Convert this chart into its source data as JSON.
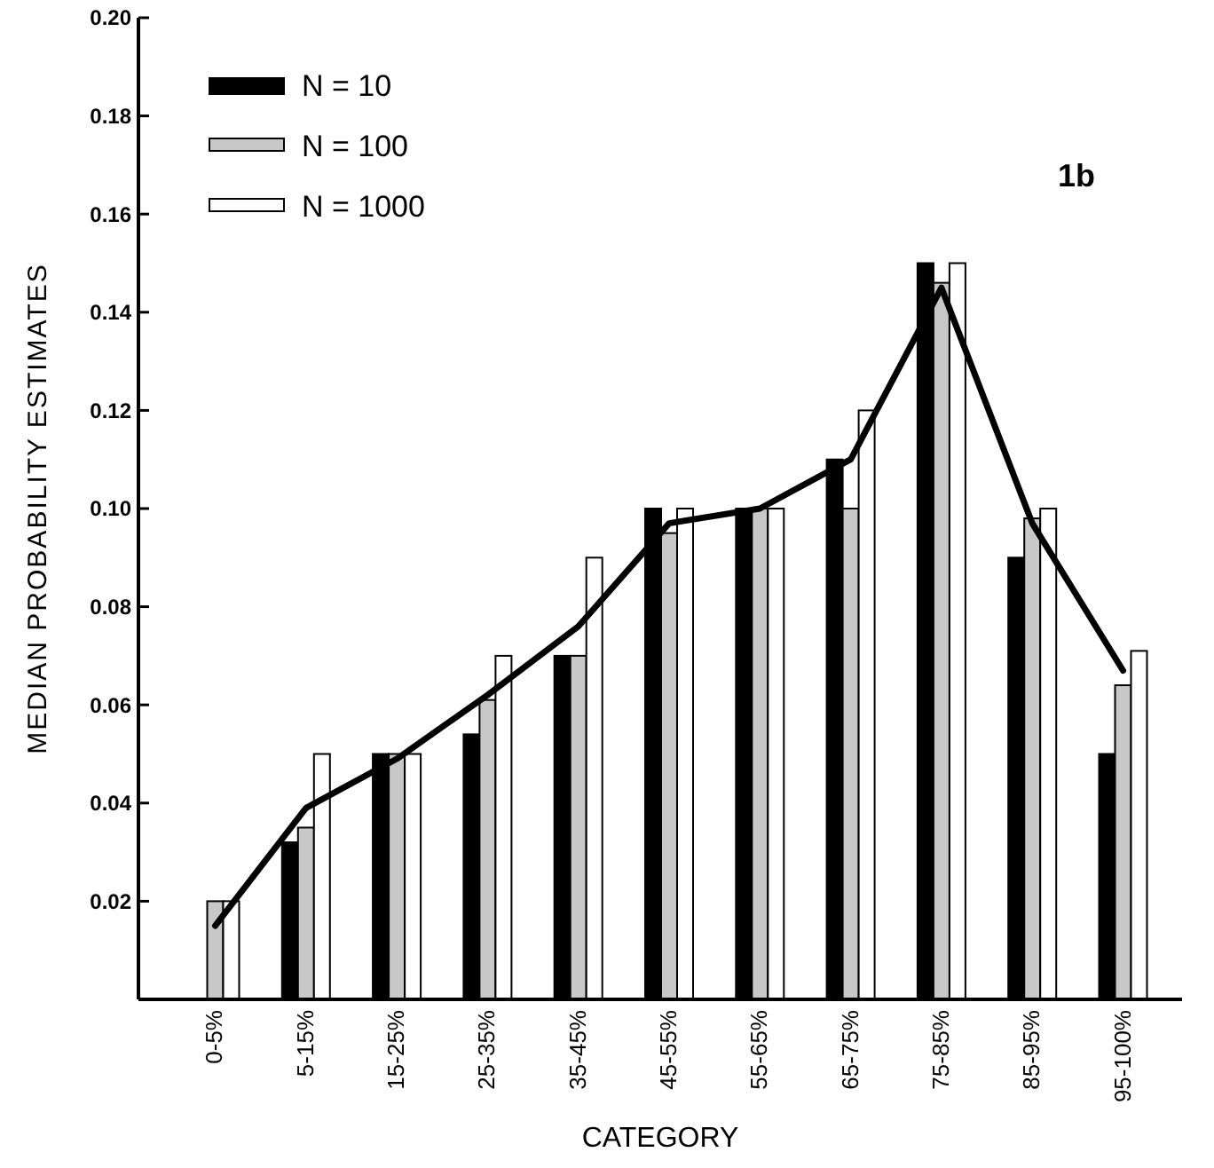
{
  "chart_data": {
    "type": "bar",
    "xlabel": "CATEGORY",
    "ylabel": "MEDIAN PROBABILITY ESTIMATES",
    "annotations": [
      "1b"
    ],
    "categories": [
      "0-5%",
      "5-15%",
      "15-25%",
      "25-35%",
      "35-45%",
      "45-55%",
      "55-65%",
      "65-75%",
      "75-85%",
      "85-95%",
      "95-100%"
    ],
    "series": [
      {
        "name": "N = 10",
        "color": "#000000",
        "values": [
          null,
          0.032,
          0.05,
          0.054,
          0.07,
          0.1,
          0.1,
          0.11,
          0.15,
          0.09,
          0.05
        ]
      },
      {
        "name": "N = 100",
        "color": "#c8c8c8",
        "values": [
          0.02,
          0.035,
          0.05,
          0.061,
          0.07,
          0.095,
          0.1,
          0.1,
          0.146,
          0.098,
          0.064
        ]
      },
      {
        "name": "N = 1000",
        "color": "#ffffff",
        "values": [
          0.02,
          0.05,
          0.05,
          0.07,
          0.09,
          0.1,
          0.1,
          0.12,
          0.15,
          0.1,
          0.071
        ]
      },
      {
        "type": "line",
        "color": "#000000",
        "values": [
          0.015,
          0.039,
          0.049,
          0.062,
          0.076,
          0.097,
          0.1,
          0.11,
          0.145,
          0.097,
          0.067
        ]
      }
    ],
    "ylim": [
      0,
      0.2
    ],
    "yticks": [
      {
        "value": 0.02,
        "label": "0.02"
      },
      {
        "value": 0.04,
        "label": "0.04"
      },
      {
        "value": 0.06,
        "label": "0.06"
      },
      {
        "value": 0.08,
        "label": "0.08"
      },
      {
        "value": 0.1,
        "label": "0.10"
      },
      {
        "value": 0.12,
        "label": "0.12"
      },
      {
        "value": 0.14,
        "label": "0.14"
      },
      {
        "value": 0.16,
        "label": "0.16"
      },
      {
        "value": 0.18,
        "label": "0.18"
      },
      {
        "value": 0.2,
        "label": "0.20"
      }
    ],
    "grid": false,
    "legend": "top left"
  }
}
